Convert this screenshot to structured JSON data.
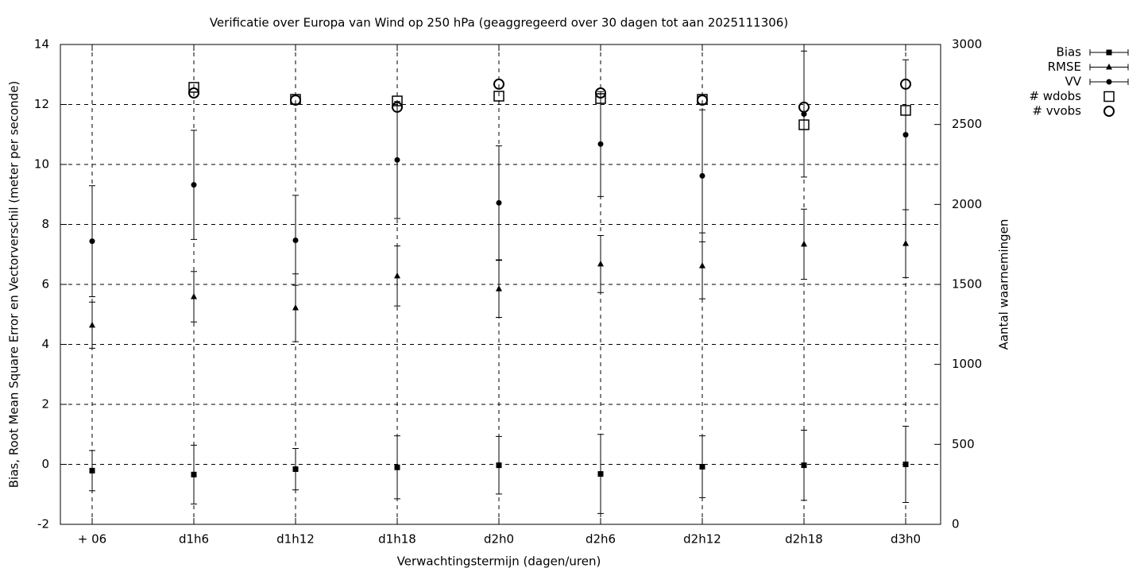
{
  "chart_data": {
    "type": "errorbar",
    "title": "Verificatie over Europa van Wind op 250 hPa (geaggregeerd over 30 dagen tot aan 2025111306)",
    "x_label": "Verwachtingstermijn (dagen/uren)",
    "y_label": "Bias, Root Mean Square Error en Vectorverschil (meter per seconde)",
    "y2_label": "Aantal waarnemingen",
    "categories": [
      "+ 06",
      "d1h6",
      "d1h12",
      "d1h18",
      "d2h0",
      "d2h6",
      "d2h12",
      "d2h18",
      "d3h0"
    ],
    "ylim": [
      -2,
      14
    ],
    "yticks": [
      -2,
      0,
      2,
      4,
      6,
      8,
      10,
      12,
      14
    ],
    "y2lim": [
      0,
      3000
    ],
    "y2ticks": [
      0,
      500,
      1000,
      1500,
      2000,
      2500,
      3000
    ],
    "grid": true,
    "legend": "top-right",
    "series": [
      {
        "name": "Bias",
        "color": "#000000",
        "marker": "square",
        "values": [
          -0.21,
          -0.34,
          -0.16,
          -0.1,
          -0.03,
          -0.32,
          -0.08,
          -0.03,
          0.0
        ],
        "errors": [
          0.67,
          0.98,
          0.69,
          1.05,
          0.96,
          1.32,
          1.03,
          1.17,
          1.27
        ]
      },
      {
        "name": "RMSE",
        "color": "#000000",
        "marker": "triangle",
        "values": [
          4.64,
          5.59,
          5.22,
          6.28,
          5.85,
          6.68,
          6.62,
          7.34,
          7.36
        ],
        "errors": [
          0.77,
          0.84,
          1.13,
          1.0,
          0.95,
          0.95,
          1.1,
          1.17,
          1.13
        ]
      },
      {
        "name": "VV",
        "color": "#000000",
        "marker": "circle",
        "values": [
          7.44,
          9.32,
          7.47,
          10.15,
          8.72,
          10.68,
          9.62,
          11.68,
          10.99
        ],
        "errors": [
          1.85,
          1.82,
          1.5,
          1.95,
          1.9,
          1.75,
          2.2,
          2.1,
          2.5
        ]
      },
      {
        "name": "# wdobs",
        "color": "#000000",
        "marker": "open-square",
        "axis": "y2",
        "values": [
          null,
          2732,
          2657,
          2647,
          2677,
          2662,
          2657,
          2498,
          2588
        ]
      },
      {
        "name": "# vvobs",
        "color": "#000000",
        "marker": "open-circle",
        "axis": "y2",
        "values": [
          null,
          2697,
          2652,
          2608,
          2752,
          2697,
          2652,
          2608,
          2752
        ]
      }
    ]
  }
}
